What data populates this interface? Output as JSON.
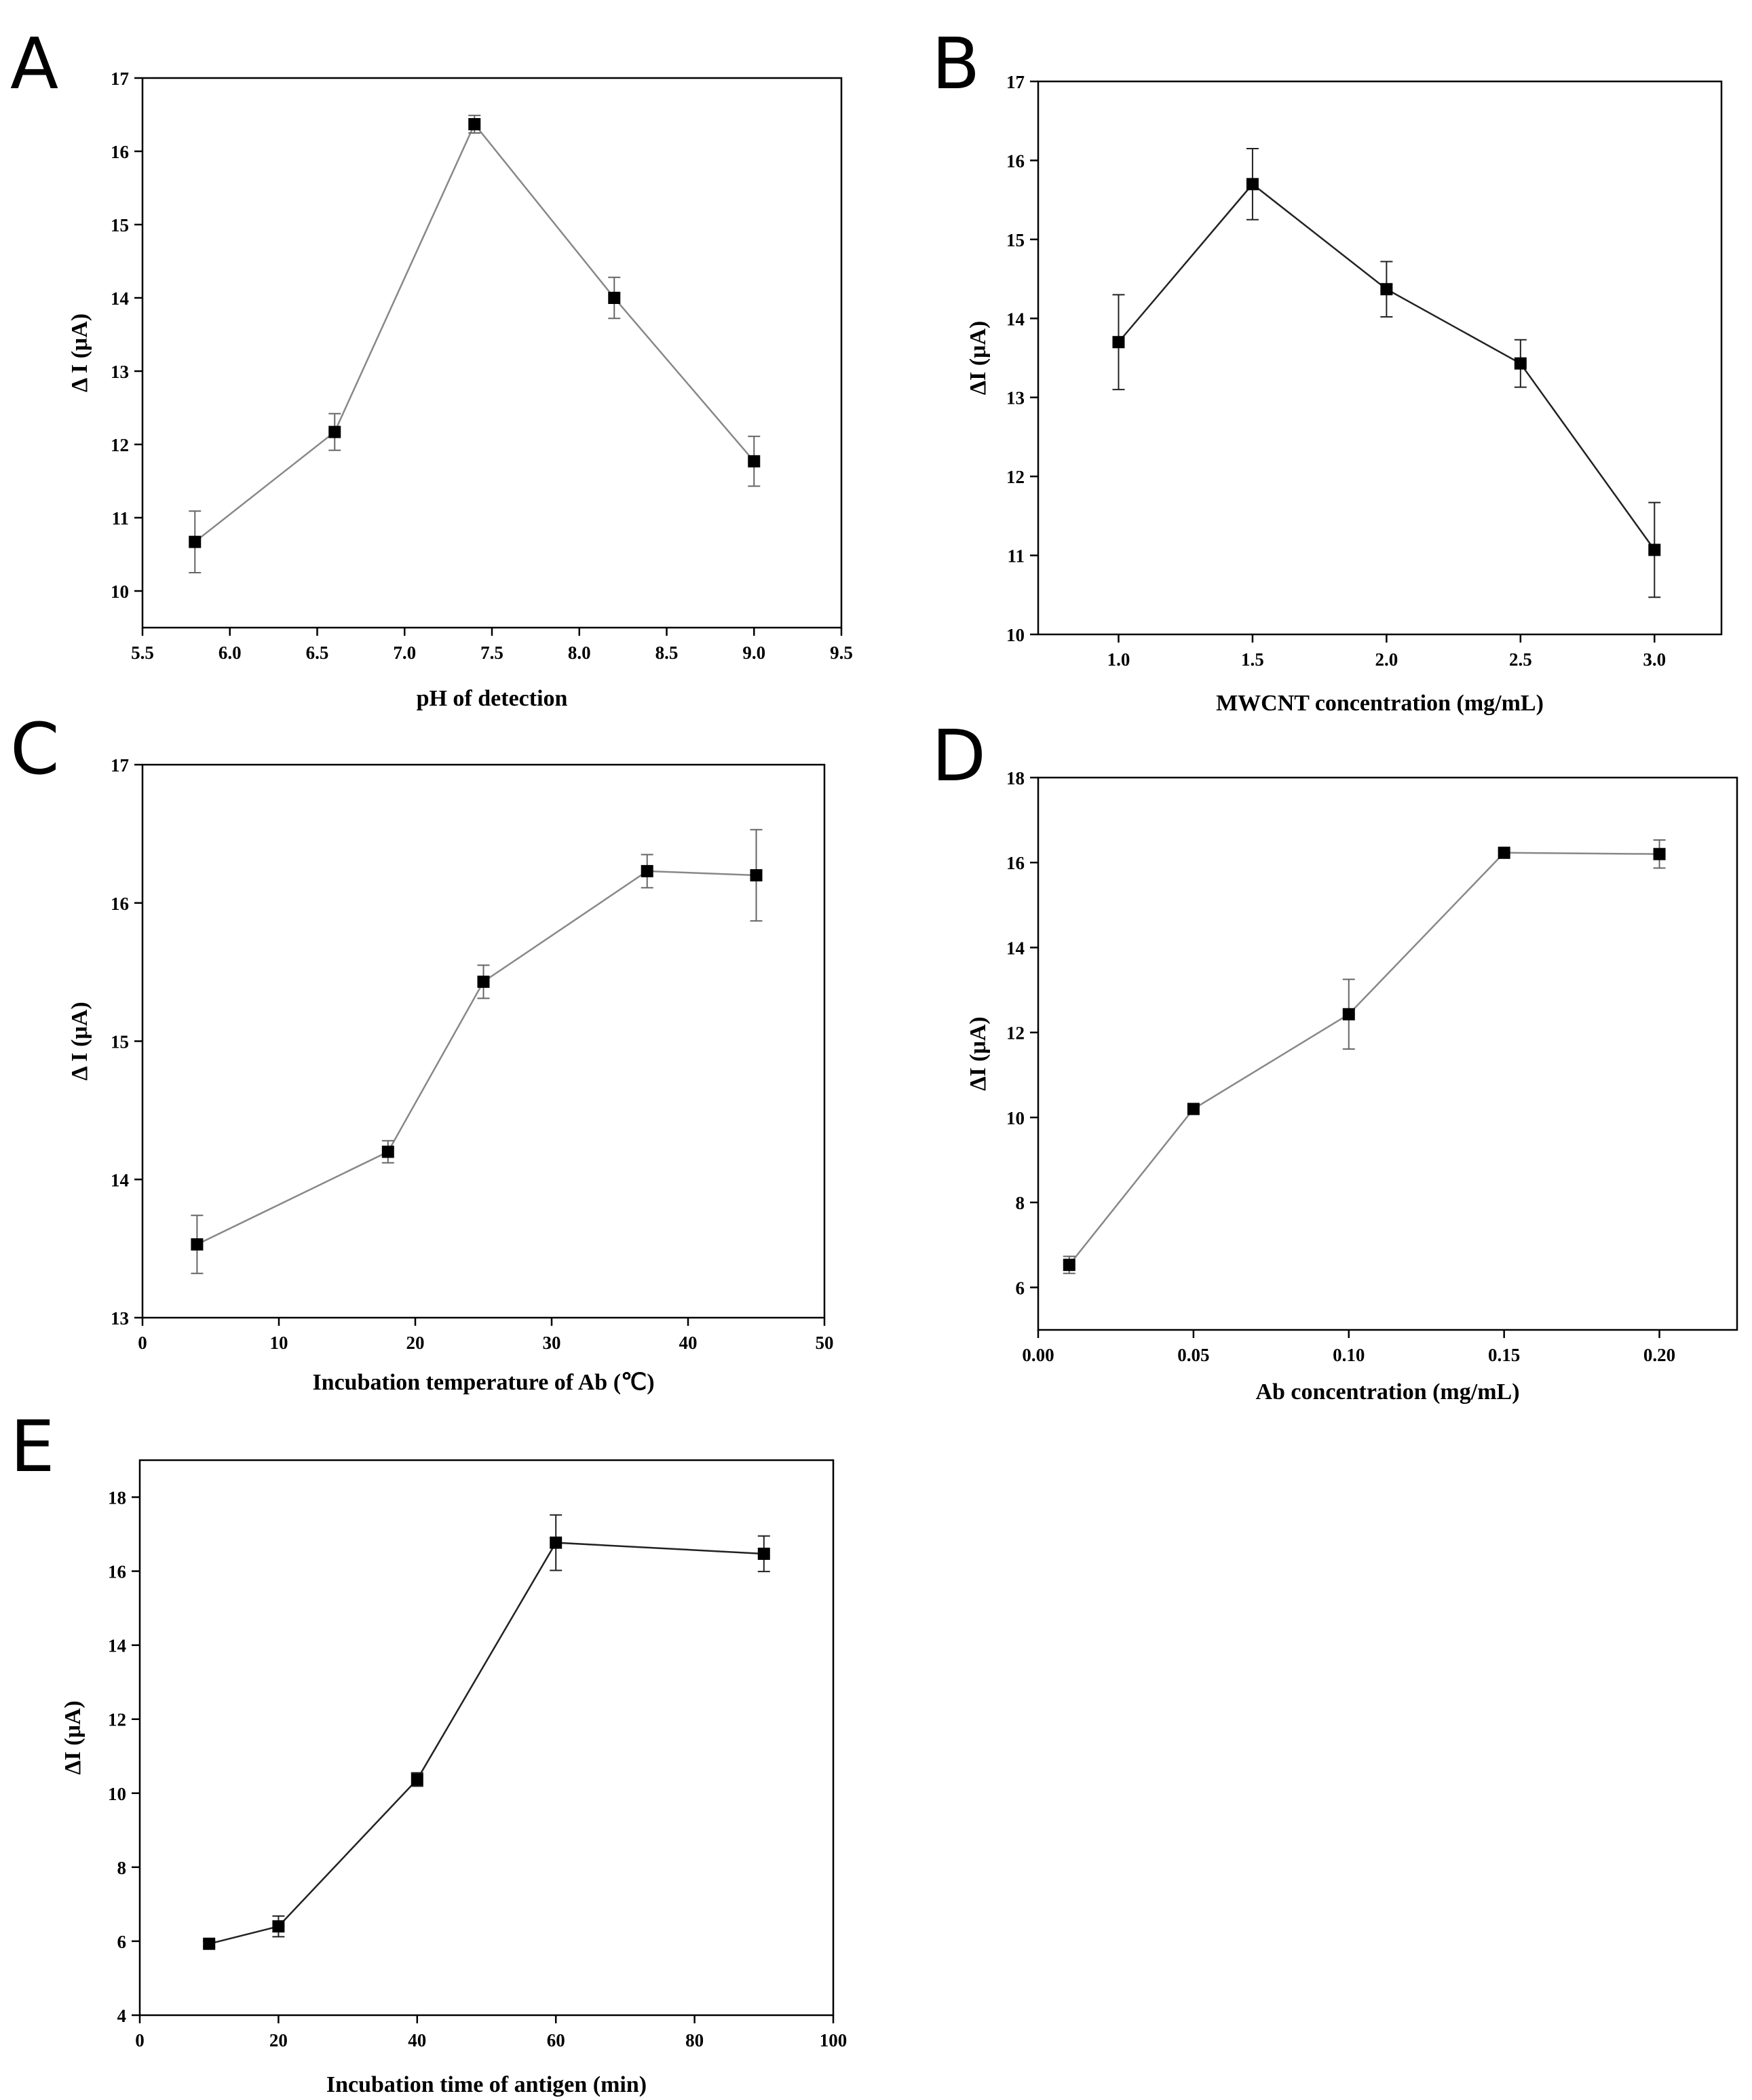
{
  "chart_data": [
    {
      "type": "line",
      "panel": "A",
      "title": "",
      "xlabel": "pH of detection",
      "ylabel": "Δ I (μA)",
      "xlim": [
        5.5,
        9.5
      ],
      "ylim": [
        9.5,
        17
      ],
      "xticks": [
        "5.5",
        "6.0",
        "6.5",
        "7.0",
        "7.5",
        "8.0",
        "8.5",
        "9.0",
        "9.5"
      ],
      "yticks": [
        "10",
        "11",
        "12",
        "13",
        "14",
        "15",
        "16",
        "17"
      ],
      "line_color": "#888888",
      "errbar_color": "#666666",
      "series": [
        {
          "name": "ΔI",
          "x": [
            5.8,
            6.6,
            7.4,
            8.2,
            9.0
          ],
          "y": [
            10.67,
            12.17,
            16.37,
            14.0,
            11.77
          ],
          "err": [
            0.42,
            0.25,
            0.12,
            0.28,
            0.34
          ]
        }
      ]
    },
    {
      "type": "line",
      "panel": "B",
      "title": "",
      "xlabel": "MWCNT   concentration (mg/mL)",
      "ylabel": "ΔI (μA)",
      "xlim": [
        0.7,
        3.25
      ],
      "ylim": [
        10,
        17
      ],
      "xticks": [
        "1.0",
        "1.5",
        "2.0",
        "2.5",
        "3.0"
      ],
      "yticks": [
        "10",
        "11",
        "12",
        "13",
        "14",
        "15",
        "16",
        "17"
      ],
      "line_color": "#222222",
      "errbar_color": "#222222",
      "series": [
        {
          "name": "ΔI",
          "x": [
            1.0,
            1.5,
            2.0,
            2.5,
            3.0
          ],
          "y": [
            13.7,
            15.7,
            14.37,
            13.43,
            11.07
          ],
          "err": [
            0.6,
            0.45,
            0.35,
            0.3,
            0.6
          ]
        }
      ]
    },
    {
      "type": "line",
      "panel": "C",
      "title": "",
      "xlabel": "Incubation temperature of Ab (℃)",
      "ylabel": "Δ I (μA)",
      "xlim": [
        0,
        50
      ],
      "ylim": [
        13,
        17
      ],
      "xticks": [
        "0",
        "10",
        "20",
        "30",
        "40",
        "50"
      ],
      "yticks": [
        "13",
        "14",
        "15",
        "16",
        "17"
      ],
      "line_color": "#888888",
      "errbar_color": "#666666",
      "series": [
        {
          "name": "ΔI",
          "x": [
            4,
            18,
            25,
            37,
            45
          ],
          "y": [
            13.53,
            14.2,
            15.43,
            16.23,
            16.2
          ],
          "err": [
            0.21,
            0.08,
            0.12,
            0.12,
            0.33
          ]
        }
      ]
    },
    {
      "type": "line",
      "panel": "D",
      "title": "",
      "xlabel": "Ab concentration (mg/mL)",
      "ylabel": "ΔI (μA)",
      "xlim": [
        0,
        0.225
      ],
      "ylim": [
        5,
        18
      ],
      "xticks": [
        "0.00",
        "0.05",
        "0.10",
        "0.15",
        "0.20"
      ],
      "yticks": [
        "6",
        "8",
        "10",
        "12",
        "14",
        "16",
        "18"
      ],
      "line_color": "#888888",
      "errbar_color": "#666666",
      "series": [
        {
          "name": "ΔI",
          "x": [
            0.01,
            0.05,
            0.1,
            0.15,
            0.2
          ],
          "y": [
            6.53,
            10.2,
            12.43,
            16.23,
            16.2
          ],
          "err": [
            0.2,
            0.08,
            0.82,
            0.05,
            0.33
          ]
        }
      ]
    },
    {
      "type": "line",
      "panel": "E",
      "title": "",
      "xlabel": "Incubation time of antigen (min)",
      "ylabel": "ΔI (μA)",
      "xlim": [
        0,
        100
      ],
      "ylim": [
        4,
        19
      ],
      "xticks": [
        "0",
        "20",
        "40",
        "60",
        "80",
        "100"
      ],
      "yticks": [
        "4",
        "6",
        "8",
        "10",
        "12",
        "14",
        "16",
        "18"
      ],
      "line_color": "#222222",
      "errbar_color": "#222222",
      "series": [
        {
          "name": "ΔI",
          "x": [
            10,
            20,
            40,
            60,
            90
          ],
          "y": [
            5.93,
            6.4,
            10.37,
            16.77,
            16.47
          ],
          "err": [
            0.08,
            0.28,
            0.18,
            0.75,
            0.48
          ]
        }
      ]
    }
  ]
}
